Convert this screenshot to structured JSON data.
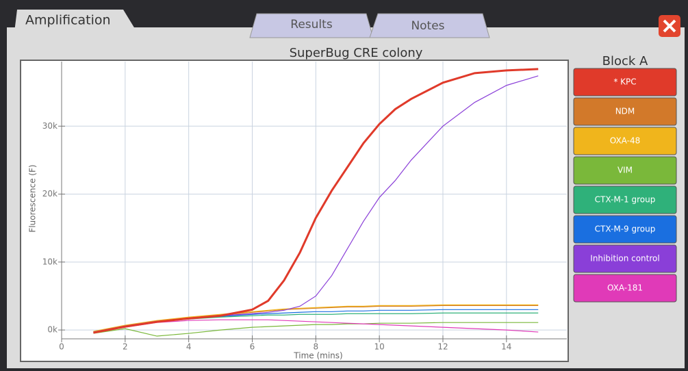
{
  "tabs": [
    "Amplification",
    "Results",
    "Notes"
  ],
  "chart_data": {
    "type": "line",
    "title": "SuperBug CRE colony",
    "legend_title": "Block A",
    "x_label": "Time (mins)",
    "y_label": "Fluorescence (F)",
    "x": [
      1,
      2,
      3,
      4,
      5,
      6,
      6.5,
      7,
      7.5,
      8,
      8.5,
      9,
      9.5,
      10,
      10.5,
      11,
      12,
      13,
      14,
      15
    ],
    "series": [
      {
        "name": "* KPC",
        "color": "#e03a2a",
        "values": [
          -400,
          500,
          1200,
          1700,
          2100,
          3000,
          4300,
          7300,
          11400,
          16500,
          20500,
          24000,
          27500,
          30300,
          32500,
          34000,
          36400,
          37800,
          38200,
          38400
        ]
      },
      {
        "name": "NDM",
        "color": "#d2792a",
        "values": [
          -300,
          600,
          1300,
          1800,
          2200,
          2600,
          2800,
          3000,
          3100,
          3200,
          3300,
          3400,
          3400,
          3500,
          3500,
          3500,
          3600,
          3600,
          3600,
          3600
        ]
      },
      {
        "name": "OXA-48",
        "color": "#f0b51c",
        "values": [
          -200,
          700,
          1400,
          1900,
          2300,
          2700,
          2900,
          3100,
          3200,
          3300,
          3400,
          3500,
          3500,
          3600,
          3600,
          3600,
          3700,
          3700,
          3700,
          3700
        ]
      },
      {
        "name": "VIM",
        "color": "#7ab83a",
        "values": [
          -500,
          200,
          -900,
          -500,
          0,
          400,
          500,
          600,
          700,
          800,
          800,
          900,
          900,
          1000,
          1000,
          1000,
          1100,
          1100,
          1100,
          1100
        ]
      },
      {
        "name": "CTX-M-1 group",
        "color": "#2fb17a",
        "values": [
          -300,
          500,
          1200,
          1600,
          1900,
          2100,
          2200,
          2200,
          2300,
          2300,
          2300,
          2400,
          2400,
          2400,
          2400,
          2400,
          2500,
          2500,
          2500,
          2500
        ]
      },
      {
        "name": "CTX-M-9 group",
        "color": "#1a6fe0",
        "values": [
          -300,
          500,
          1200,
          1700,
          2000,
          2300,
          2400,
          2500,
          2600,
          2700,
          2700,
          2800,
          2800,
          2900,
          2900,
          2900,
          3000,
          3000,
          3000,
          3000
        ]
      },
      {
        "name": "Inhibition control",
        "color": "#8a3fd8",
        "values": [
          -300,
          600,
          1300,
          1700,
          2100,
          2400,
          2600,
          2900,
          3500,
          5000,
          8000,
          12000,
          16000,
          19500,
          22000,
          25000,
          30000,
          33500,
          36000,
          37400
        ]
      },
      {
        "name": "OXA-181",
        "color": "#e03ab8",
        "values": [
          -400,
          400,
          1100,
          1400,
          1500,
          1500,
          1500,
          1400,
          1300,
          1200,
          1100,
          1000,
          900,
          800,
          700,
          600,
          400,
          200,
          0,
          -300
        ]
      }
    ],
    "xlim": [
      0,
      15.9
    ],
    "ylim": [
      -1300,
      39500
    ],
    "xticks": [
      0,
      2,
      4,
      6,
      8,
      10,
      12,
      14
    ],
    "yticks": [
      {
        "value": 0,
        "label": "0k"
      },
      {
        "value": 10000,
        "label": "10k"
      },
      {
        "value": 20000,
        "label": "20k"
      },
      {
        "value": 30000,
        "label": "30k"
      }
    ],
    "grid": true
  }
}
